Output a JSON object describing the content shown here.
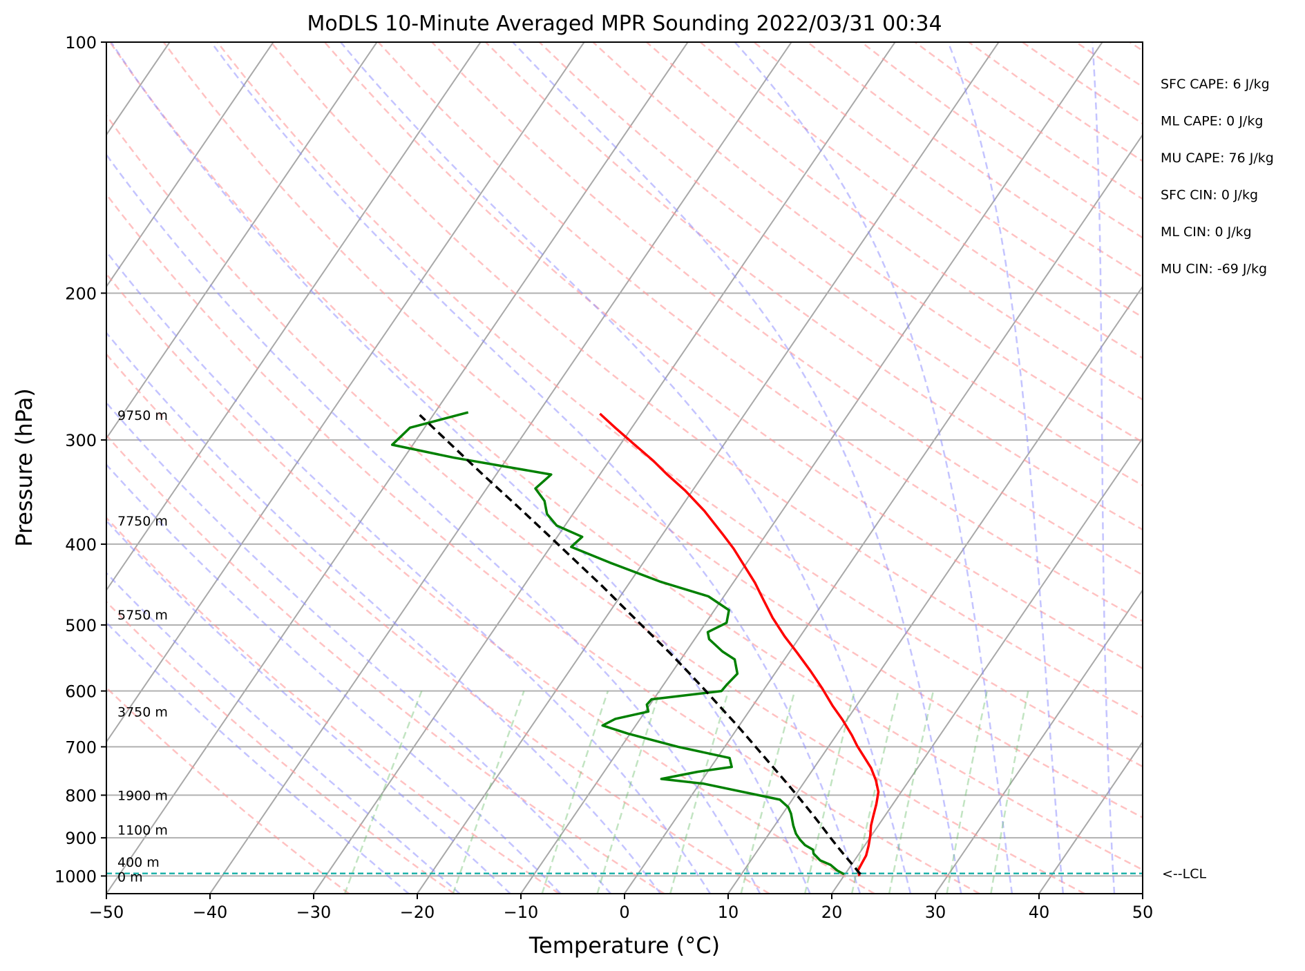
{
  "chart_data": {
    "type": "line",
    "title": "MoDLS 10-Minute Averaged MPR Sounding 2022/03/31 00:34",
    "xlabel": "Temperature (°C)",
    "ylabel": "Pressure (hPa)",
    "xlim": [
      -50,
      50
    ],
    "ylim": [
      1050,
      100
    ],
    "y_scale": "log",
    "x_ticks": [
      "−50",
      "−40",
      "−30",
      "−20",
      "−10",
      "0",
      "10",
      "20",
      "30",
      "40",
      "50"
    ],
    "x_tick_values": [
      -50,
      -40,
      -30,
      -20,
      -10,
      0,
      10,
      20,
      30,
      40,
      50
    ],
    "y_ticks": [
      100,
      200,
      300,
      400,
      500,
      600,
      700,
      800,
      900,
      1000
    ],
    "grid": true,
    "skew": true,
    "height_labels": [
      {
        "label": "9750 m",
        "p": 280
      },
      {
        "label": "7750 m",
        "p": 375
      },
      {
        "label": "5750 m",
        "p": 486
      },
      {
        "label": "3750 m",
        "p": 635
      },
      {
        "label": "1900 m",
        "p": 800
      },
      {
        "label": "1100 m",
        "p": 880
      },
      {
        "label": "400 m",
        "p": 962
      },
      {
        "label": "0 m",
        "p": 1002
      }
    ],
    "lcl": {
      "label": "<--LCL",
      "p": 993
    },
    "stats": [
      "SFC CAPE: 6 J/kg",
      "ML CAPE: 0 J/kg",
      "MU CAPE: 76 J/kg",
      "SFC CIN: 0 J/kg",
      "ML CIN: 0 J/kg",
      "MU CIN: -69 J/kg"
    ],
    "series": [
      {
        "color": "#ff0000",
        "points": [
          [
            1000,
            21.5
          ],
          [
            985,
            21.0
          ],
          [
            965,
            20.9
          ],
          [
            945,
            20.8
          ],
          [
            920,
            20.4
          ],
          [
            895,
            19.9
          ],
          [
            870,
            19.3
          ],
          [
            848,
            18.9
          ],
          [
            820,
            18.4
          ],
          [
            793,
            17.8
          ],
          [
            768,
            16.8
          ],
          [
            742,
            15.5
          ],
          [
            718,
            14.0
          ],
          [
            698,
            12.7
          ],
          [
            678,
            11.5
          ],
          [
            650,
            9.6
          ],
          [
            625,
            7.7
          ],
          [
            595,
            5.5
          ],
          [
            568,
            3.3
          ],
          [
            540,
            0.8
          ],
          [
            516,
            -1.5
          ],
          [
            490,
            -3.9
          ],
          [
            466,
            -6.0
          ],
          [
            445,
            -7.9
          ],
          [
            425,
            -10.0
          ],
          [
            405,
            -12.2
          ],
          [
            390,
            -14.1
          ],
          [
            365,
            -17.5
          ],
          [
            345,
            -20.7
          ],
          [
            330,
            -23.5
          ],
          [
            318,
            -25.7
          ],
          [
            303,
            -28.8
          ],
          [
            290,
            -31.6
          ],
          [
            279,
            -34.0
          ]
        ]
      },
      {
        "color": "#008000",
        "points": [
          [
            995,
            19.9
          ],
          [
            985,
            19.0
          ],
          [
            970,
            18.0
          ],
          [
            958,
            16.7
          ],
          [
            940,
            15.6
          ],
          [
            930,
            15.3
          ],
          [
            918,
            14.2
          ],
          [
            905,
            13.4
          ],
          [
            890,
            12.6
          ],
          [
            870,
            11.8
          ],
          [
            842,
            10.8
          ],
          [
            827,
            10.1
          ],
          [
            810,
            8.8
          ],
          [
            775,
            0.4
          ],
          [
            765,
            -4.0
          ],
          [
            750,
            -1.0
          ],
          [
            740,
            2.0
          ],
          [
            722,
            1.2
          ],
          [
            700,
            -4.5
          ],
          [
            675,
            -10.2
          ],
          [
            660,
            -13.2
          ],
          [
            648,
            -12.4
          ],
          [
            635,
            -9.7
          ],
          [
            623,
            -10.3
          ],
          [
            614,
            -10.2
          ],
          [
            600,
            -4.0
          ],
          [
            590,
            -3.9
          ],
          [
            572,
            -3.6
          ],
          [
            550,
            -4.8
          ],
          [
            538,
            -6.5
          ],
          [
            520,
            -8.6
          ],
          [
            510,
            -9.2
          ],
          [
            497,
            -8.0
          ],
          [
            480,
            -8.6
          ],
          [
            462,
            -11.5
          ],
          [
            444,
            -17.0
          ],
          [
            421,
            -23.2
          ],
          [
            403,
            -28.0
          ],
          [
            392,
            -27.6
          ],
          [
            380,
            -30.8
          ],
          [
            368,
            -32.5
          ],
          [
            355,
            -33.6
          ],
          [
            343,
            -35.3
          ],
          [
            330,
            -34.7
          ],
          [
            315,
            -45.2
          ],
          [
            304,
            -52.0
          ],
          [
            297,
            -51.7
          ],
          [
            290,
            -51.4
          ],
          [
            278,
            -46.8
          ]
        ]
      },
      {
        "color": "#000000",
        "dashed": true,
        "points": [
          [
            995,
            21.5
          ],
          [
            990,
            21.2
          ],
          [
            975,
            20.4
          ],
          [
            955,
            19.3
          ],
          [
            930,
            17.9
          ],
          [
            900,
            16.2
          ],
          [
            870,
            14.5
          ],
          [
            840,
            12.7
          ],
          [
            810,
            10.8
          ],
          [
            780,
            8.8
          ],
          [
            750,
            6.7
          ],
          [
            720,
            4.5
          ],
          [
            690,
            2.2
          ],
          [
            660,
            -0.2
          ],
          [
            630,
            -2.8
          ],
          [
            600,
            -5.5
          ],
          [
            570,
            -8.4
          ],
          [
            540,
            -11.5
          ],
          [
            510,
            -14.9
          ],
          [
            480,
            -18.5
          ],
          [
            450,
            -22.3
          ],
          [
            420,
            -26.5
          ],
          [
            390,
            -31.0
          ],
          [
            360,
            -35.9
          ],
          [
            330,
            -41.3
          ],
          [
            300,
            -47.1
          ],
          [
            280,
            -51.3
          ]
        ]
      }
    ]
  }
}
